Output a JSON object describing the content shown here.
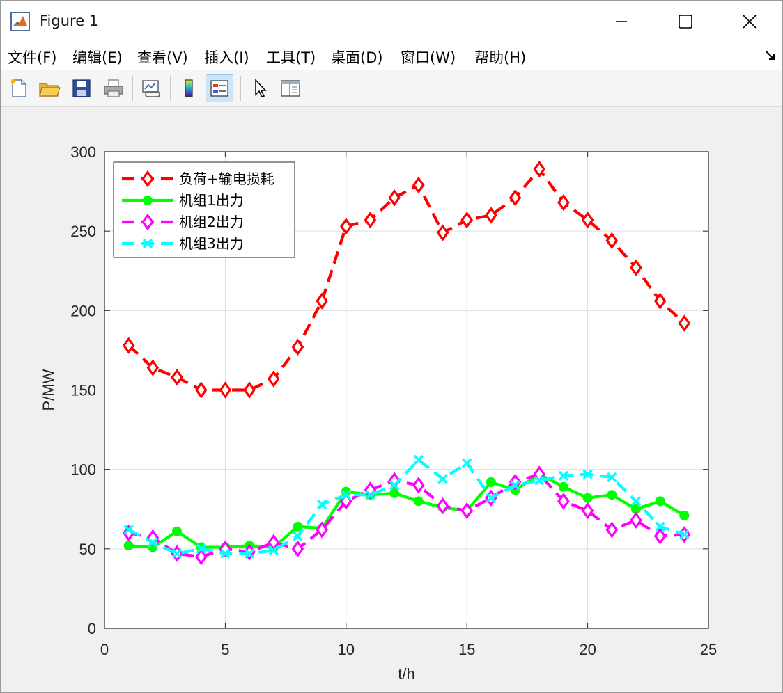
{
  "window": {
    "title": "Figure 1"
  },
  "menu": [
    {
      "label": "文件(F)"
    },
    {
      "label": "编辑(E)"
    },
    {
      "label": "查看(V)"
    },
    {
      "label": "插入(I)"
    },
    {
      "label": "工具(T)"
    },
    {
      "label": "桌面(D)"
    },
    {
      "label": "窗口(W)"
    },
    {
      "label": "帮助(H)"
    }
  ],
  "toolbar": [
    {
      "icon": "new-figure-icon"
    },
    {
      "icon": "open-file-icon"
    },
    {
      "icon": "save-icon"
    },
    {
      "icon": "print-icon"
    },
    {
      "icon": "link-plot-icon"
    },
    {
      "icon": "colorbar-icon"
    },
    {
      "icon": "legend-icon"
    },
    {
      "icon": "pointer-icon"
    },
    {
      "icon": "property-editor-icon"
    }
  ],
  "colors": {
    "load": "#ff0000",
    "gen1": "#00ff00",
    "gen2": "#ff00ff",
    "gen3": "#00ffff"
  },
  "chart_data": {
    "type": "line",
    "title": "",
    "xlabel": "t/h",
    "ylabel": "P/MW",
    "xlim": [
      0,
      25
    ],
    "ylim": [
      0,
      300
    ],
    "xticks": [
      "0",
      "5",
      "10",
      "15",
      "20",
      "25"
    ],
    "yticks": [
      "0",
      "50",
      "100",
      "150",
      "200",
      "250",
      "300"
    ],
    "grid": true,
    "legend_position": "top-left",
    "x": [
      1,
      2,
      3,
      4,
      5,
      6,
      7,
      8,
      9,
      10,
      11,
      12,
      13,
      14,
      15,
      16,
      17,
      18,
      19,
      20,
      21,
      22,
      23,
      24
    ],
    "series": [
      {
        "name": "负荷+输电损耗",
        "style": "dashed",
        "marker": "diamond",
        "color": "#ff0000",
        "values": [
          178,
          164,
          158,
          150,
          150,
          150,
          157,
          177,
          206,
          253,
          257,
          271,
          279,
          249,
          257,
          260,
          271,
          289,
          268,
          257,
          244,
          227,
          206,
          192
        ]
      },
      {
        "name": "机组1出力",
        "style": "solid",
        "marker": "circle",
        "color": "#00ff00",
        "values": [
          52,
          51,
          61,
          51,
          51,
          52,
          51,
          64,
          63,
          86,
          84,
          85,
          80,
          76,
          74,
          92,
          87,
          97,
          89,
          82,
          84,
          75,
          80,
          71
        ]
      },
      {
        "name": "机组2出力",
        "style": "dashed",
        "marker": "diamond",
        "color": "#ff00ff",
        "values": [
          60,
          57,
          47,
          45,
          50,
          48,
          54,
          50,
          62,
          80,
          87,
          93,
          90,
          77,
          74,
          82,
          92,
          97,
          80,
          74,
          62,
          68,
          58,
          59
        ]
      },
      {
        "name": "机组3出力",
        "style": "dashed",
        "marker": "x",
        "color": "#00ffff",
        "values": [
          62,
          54,
          47,
          50,
          47,
          47,
          49,
          58,
          78,
          84,
          84,
          90,
          106,
          94,
          104,
          82,
          90,
          93,
          96,
          97,
          95,
          80,
          64,
          59
        ]
      }
    ]
  }
}
